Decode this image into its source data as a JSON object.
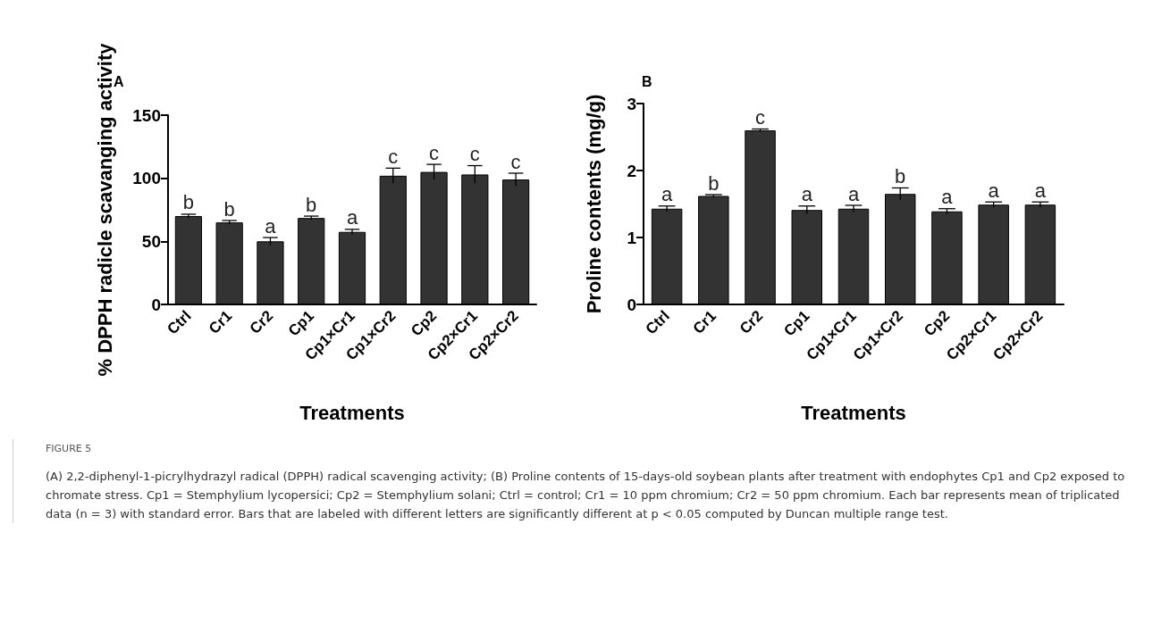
{
  "chart_data": [
    {
      "type": "bar",
      "title": "A",
      "xlabel": "Treatments",
      "ylabel": "% DPPH radicle scavanging activity",
      "categories": [
        "Ctrl",
        "Cr1",
        "Cr2",
        "Cp1",
        "Cp1×Cr1",
        "Cp1×Cr2",
        "Cp2",
        "Cp2×Cr1",
        "Cp2×Cr2"
      ],
      "values": [
        70,
        65,
        50,
        68.5,
        57.5,
        102,
        105,
        103,
        99
      ],
      "errors": [
        1.5,
        1.5,
        3,
        1.5,
        2,
        6,
        6,
        7,
        5
      ],
      "color": "#333333",
      "ylim": [
        0,
        150
      ],
      "yticks": [
        0,
        50,
        100,
        150
      ],
      "grid": false,
      "annotations": [
        {
          "text": "b",
          "x": "Ctrl",
          "y": 71.5
        },
        {
          "text": "b",
          "x": "Cr1",
          "y": 66.5
        },
        {
          "text": "a",
          "x": "Cr2",
          "y": 53
        },
        {
          "text": "b",
          "x": "Cp1",
          "y": 70
        },
        {
          "text": "a",
          "x": "Cp1×Cr1",
          "y": 59.5
        },
        {
          "text": "c",
          "x": "Cp1×Cr2",
          "y": 108
        },
        {
          "text": "c",
          "x": "Cp2",
          "y": 111
        },
        {
          "text": "c",
          "x": "Cp2×Cr1",
          "y": 110
        },
        {
          "text": "c",
          "x": "Cp2×Cr2",
          "y": 104
        },
        "FIGURE 5",
        "(A) 2,2-diphenyl-1-picrylhydrazyl radical (DPPH) radical scavenging activity; (B) Proline contents of 15-days-old soybean plants after treatment with endophytes Cp1 and Cp2 exposed to chromate stress. Cp1 = Stemphylium lycopersici; Cp2 = Stemphylium solani; Ctrl = control; Cr1 = 10 ppm chromium; Cr2 = 50 ppm chromium. Each bar represents mean of triplicated data (n = 3) with standard error. Bars that are labeled with different letters are significantly different at p < 0.05 computed by Duncan multiple range test."
      ]
    },
    {
      "type": "bar",
      "title": "B",
      "xlabel": "Treatments",
      "ylabel": "Proline contents (mg/g)",
      "categories": [
        "Ctrl",
        "Cr1",
        "Cr2",
        "Cp1",
        "Cp1×Cr1",
        "Cp1×Cr2",
        "Cp2",
        "Cp2×Cr1",
        "Cp2×Cr2"
      ],
      "values": [
        1.43,
        1.62,
        2.6,
        1.41,
        1.43,
        1.65,
        1.39,
        1.49,
        1.49
      ],
      "errors": [
        0.04,
        0.02,
        0.02,
        0.06,
        0.05,
        0.09,
        0.04,
        0.04,
        0.04
      ],
      "color": "#333333",
      "ylim": [
        0,
        3
      ],
      "yticks": [
        0,
        1,
        2,
        3
      ],
      "grid": false,
      "annotations": [
        {
          "text": "a",
          "x": "Ctrl",
          "y": 1.47
        },
        {
          "text": "b",
          "x": "Cr1",
          "y": 1.64
        },
        {
          "text": "c",
          "x": "Cr2",
          "y": 2.62
        },
        {
          "text": "a",
          "x": "Cp1",
          "y": 1.47
        },
        {
          "text": "a",
          "x": "Cp1×Cr1",
          "y": 1.48
        },
        {
          "text": "b",
          "x": "Cp1×Cr2",
          "y": 1.74
        },
        {
          "text": "a",
          "x": "Cp2",
          "y": 1.43
        },
        {
          "text": "a",
          "x": "Cp2×Cr1",
          "y": 1.53
        },
        {
          "text": "a",
          "x": "Cp2×Cr2",
          "y": 1.53
        }
      ]
    }
  ]
}
